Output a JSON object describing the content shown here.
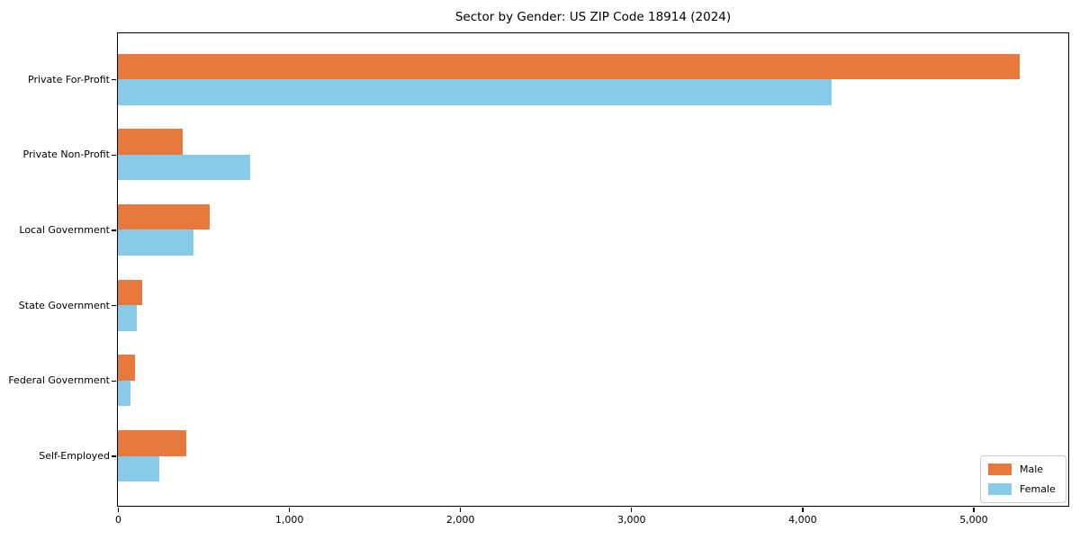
{
  "chart_data": {
    "type": "bar",
    "orientation": "horizontal",
    "title": "Sector by Gender: US ZIP Code 18914 (2024)",
    "categories": [
      "Private For-Profit",
      "Private Non-Profit",
      "Local Government",
      "State Government",
      "Federal Government",
      "Self-Employed"
    ],
    "series": [
      {
        "name": "Male",
        "color": "#e8793c",
        "values": [
          5270,
          380,
          535,
          140,
          100,
          400
        ]
      },
      {
        "name": "Female",
        "color": "#87cbe8",
        "values": [
          4170,
          775,
          440,
          110,
          75,
          240
        ]
      }
    ],
    "xlabel": "",
    "ylabel": "",
    "xlim": [
      0,
      5550
    ],
    "x_ticks": [
      {
        "value": 0,
        "label": "0"
      },
      {
        "value": 1000,
        "label": "1,000"
      },
      {
        "value": 2000,
        "label": "2,000"
      },
      {
        "value": 3000,
        "label": "3,000"
      },
      {
        "value": 4000,
        "label": "4,000"
      },
      {
        "value": 5000,
        "label": "5,000"
      }
    ],
    "legend": {
      "position": "lower-right"
    },
    "grid": false,
    "background": "#ffffff",
    "axis_color": "#000000"
  }
}
